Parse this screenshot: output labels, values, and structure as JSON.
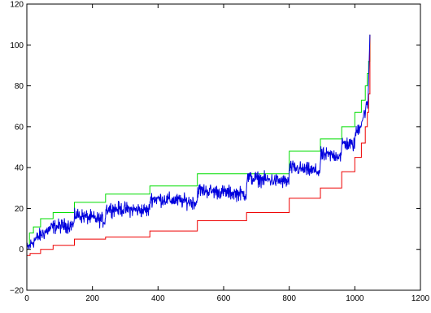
{
  "chart_data": {
    "type": "line",
    "title": "",
    "xlabel": "",
    "ylabel": "",
    "xlim": [
      0,
      1200
    ],
    "ylim": [
      -20,
      120
    ],
    "xticks": [
      0,
      200,
      400,
      600,
      800,
      1000,
      1200
    ],
    "yticks": [
      -20,
      0,
      20,
      40,
      60,
      80,
      100,
      120
    ],
    "xtick_labels": [
      "0",
      "200",
      "400",
      "600",
      "800",
      "1000",
      "1200"
    ],
    "ytick_labels": [
      "−20",
      "0",
      "20",
      "40",
      "60",
      "80",
      "100",
      "120"
    ],
    "grid": false,
    "legend": "none",
    "series": [
      {
        "color": "#00dd00",
        "step": true,
        "points": [
          [
            0,
            2
          ],
          [
            8,
            8
          ],
          [
            20,
            11
          ],
          [
            42,
            15
          ],
          [
            80,
            18
          ],
          [
            145,
            23
          ],
          [
            240,
            27
          ],
          [
            375,
            31
          ],
          [
            520,
            37
          ],
          [
            670,
            37
          ],
          [
            800,
            48
          ],
          [
            895,
            54
          ],
          [
            960,
            60
          ],
          [
            1000,
            67
          ],
          [
            1020,
            73
          ],
          [
            1032,
            80
          ],
          [
            1038,
            86
          ],
          [
            1042,
            92
          ],
          [
            1046,
            105
          ]
        ]
      },
      {
        "color": "#ee0000",
        "step": true,
        "points": [
          [
            0,
            -3
          ],
          [
            10,
            -2
          ],
          [
            20,
            -2
          ],
          [
            42,
            0
          ],
          [
            80,
            2
          ],
          [
            145,
            5
          ],
          [
            240,
            6
          ],
          [
            375,
            9
          ],
          [
            520,
            14
          ],
          [
            670,
            18
          ],
          [
            800,
            25
          ],
          [
            895,
            30
          ],
          [
            960,
            38
          ],
          [
            1000,
            45
          ],
          [
            1020,
            52
          ],
          [
            1032,
            60
          ],
          [
            1038,
            67
          ],
          [
            1042,
            76
          ],
          [
            1046,
            105
          ]
        ]
      },
      {
        "color": "#0000dd",
        "step": false,
        "noise": 2.2,
        "points": [
          [
            0,
            0
          ],
          [
            20,
            4
          ],
          [
            42,
            7
          ],
          [
            80,
            11
          ],
          [
            144,
            12
          ],
          [
            146,
            17
          ],
          [
            239,
            14
          ],
          [
            241,
            20
          ],
          [
            374,
            19
          ],
          [
            376,
            25
          ],
          [
            519,
            23
          ],
          [
            521,
            29
          ],
          [
            669,
            27
          ],
          [
            671,
            35
          ],
          [
            799,
            33
          ],
          [
            801,
            40
          ],
          [
            894,
            38
          ],
          [
            896,
            46
          ],
          [
            959,
            46
          ],
          [
            961,
            52
          ],
          [
            999,
            51
          ],
          [
            1001,
            56
          ],
          [
            1020,
            62
          ],
          [
            1032,
            68
          ],
          [
            1040,
            72
          ],
          [
            1046,
            105
          ]
        ]
      }
    ]
  }
}
